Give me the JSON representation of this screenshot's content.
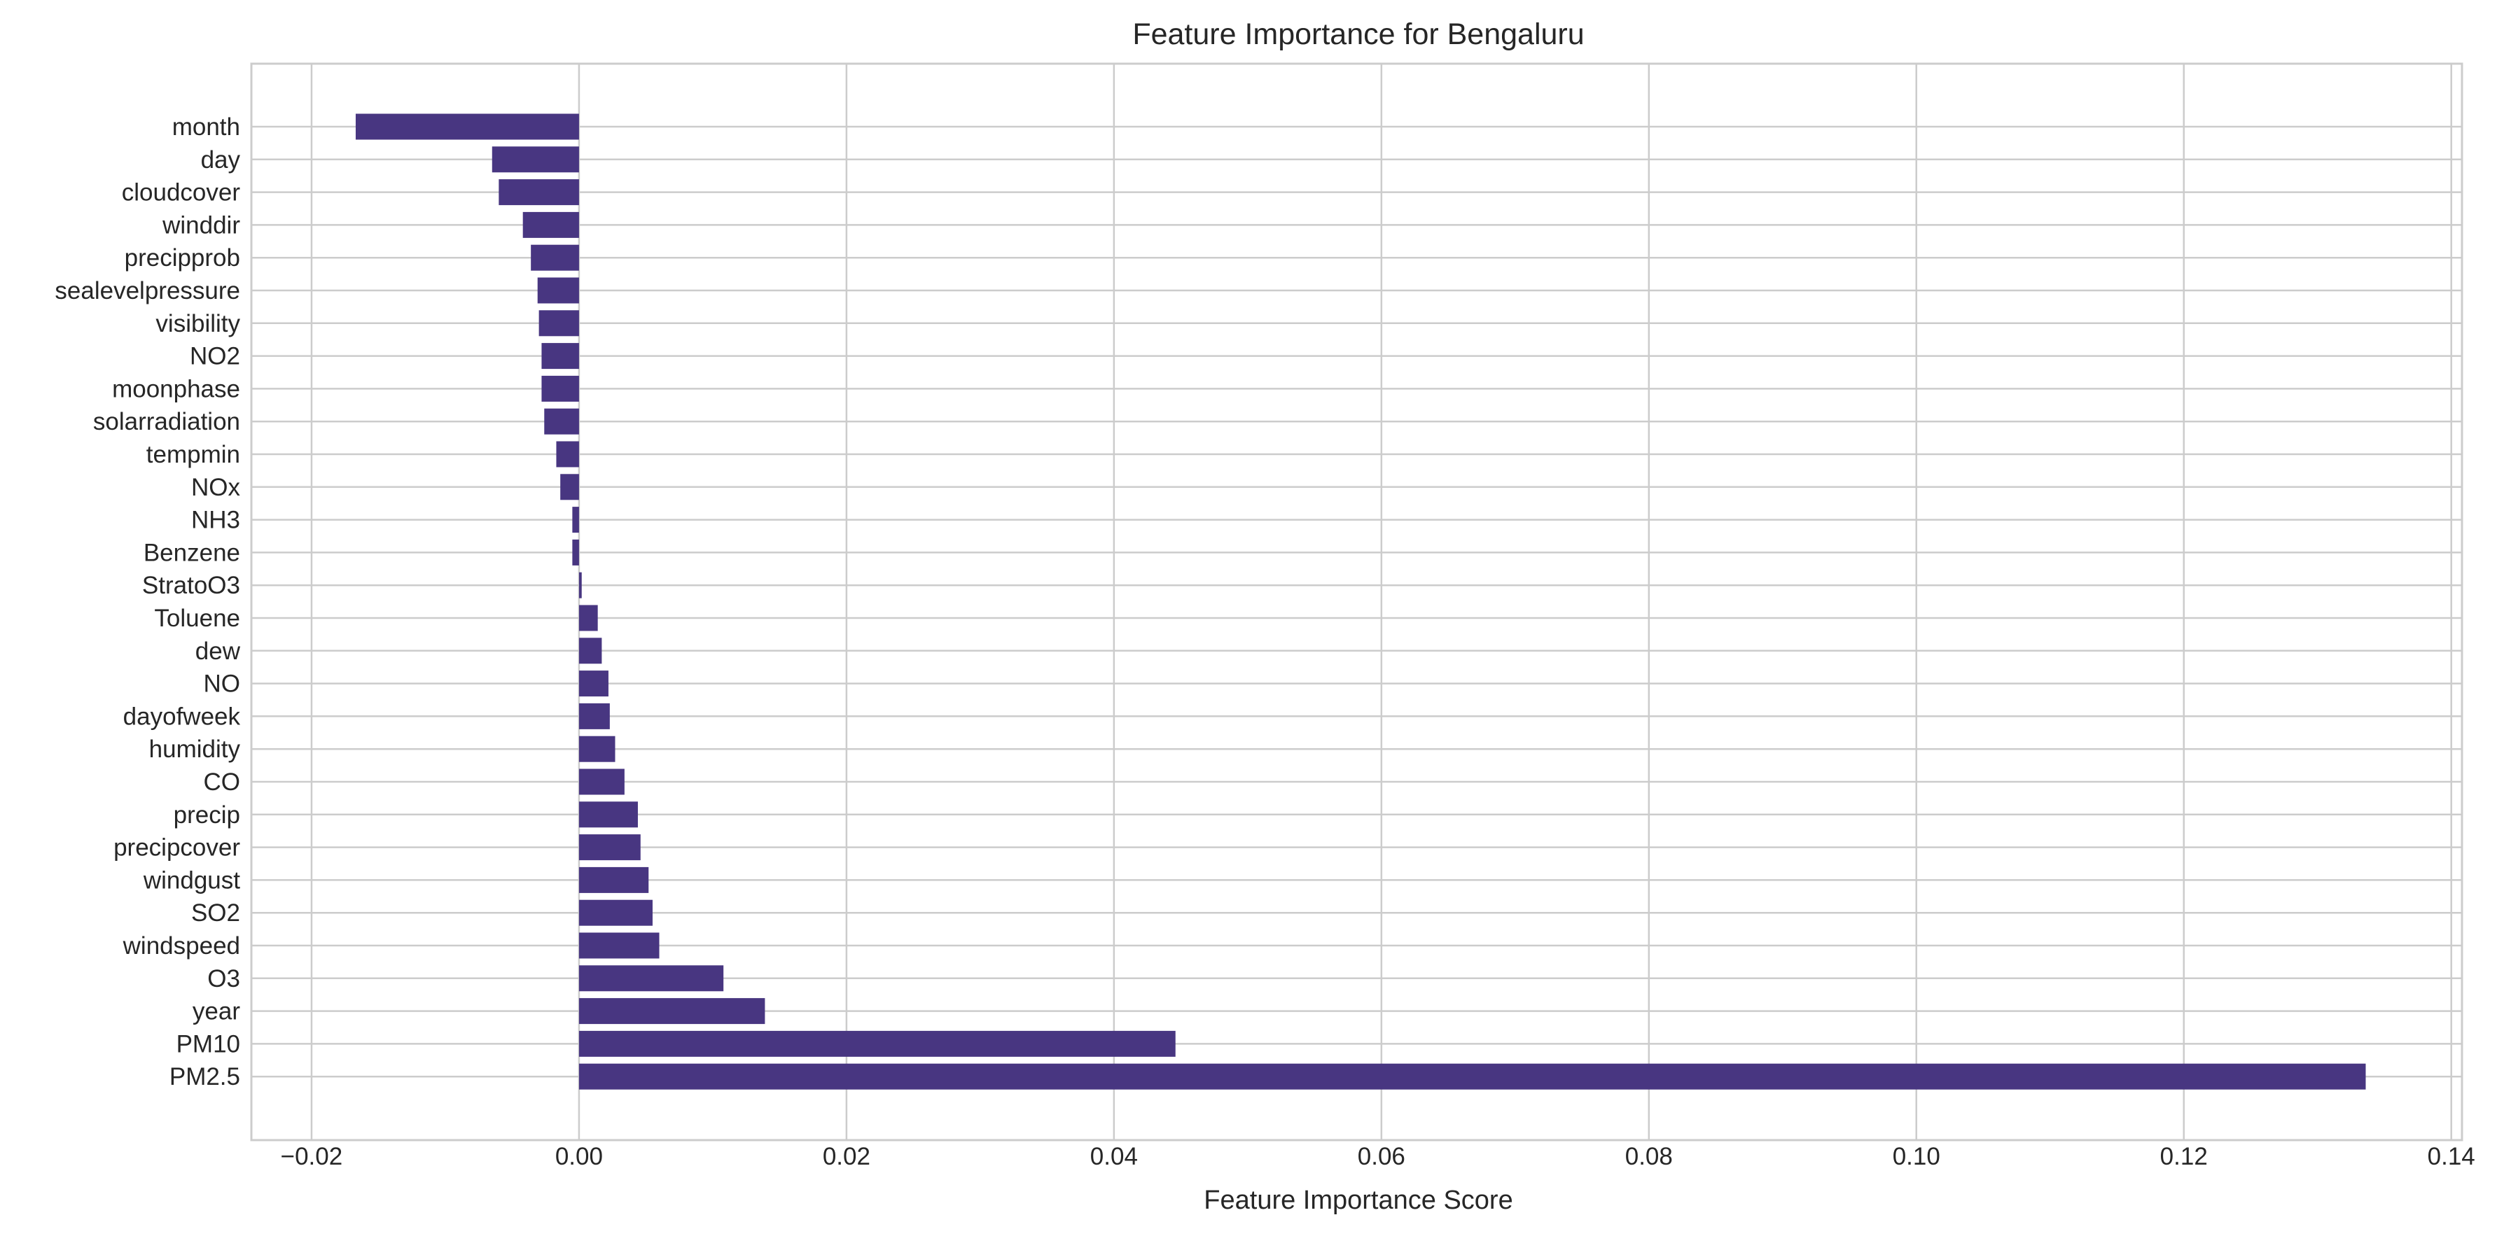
{
  "chart_data": {
    "type": "bar",
    "orientation": "horizontal",
    "title": "Feature Importance for Bengaluru",
    "xlabel": "Feature Importance Score",
    "ylabel": "",
    "xlim": [
      -0.0245,
      0.1408
    ],
    "x_ticks": [
      -0.02,
      0.0,
      0.02,
      0.04,
      0.06,
      0.08,
      0.1,
      0.12,
      0.14
    ],
    "x_tick_labels": [
      "−0.02",
      "0.00",
      "0.02",
      "0.04",
      "0.06",
      "0.08",
      "0.10",
      "0.12",
      "0.14"
    ],
    "grid": true,
    "bar_color": "#483681",
    "categories": [
      "month",
      "day",
      "cloudcover",
      "winddir",
      "precipprob",
      "sealevelpressure",
      "visibility",
      "NO2",
      "moonphase",
      "solarradiation",
      "tempmin",
      "NOx",
      "NH3",
      "Benzene",
      "StratoO3",
      "Toluene",
      "dew",
      "NO",
      "dayofweek",
      "humidity",
      "CO",
      "precip",
      "precipcover",
      "windgust",
      "SO2",
      "windspeed",
      "O3",
      "year",
      "PM10",
      "PM2.5"
    ],
    "values": [
      -0.0167,
      -0.0065,
      -0.006,
      -0.0042,
      -0.0036,
      -0.0031,
      -0.003,
      -0.0028,
      -0.0028,
      -0.0026,
      -0.0017,
      -0.0014,
      -0.0005,
      -0.0005,
      0.0002,
      0.0014,
      0.0017,
      0.0022,
      0.0023,
      0.0027,
      0.0034,
      0.0044,
      0.0046,
      0.0052,
      0.0055,
      0.006,
      0.0108,
      0.0139,
      0.0446,
      0.1336
    ]
  }
}
